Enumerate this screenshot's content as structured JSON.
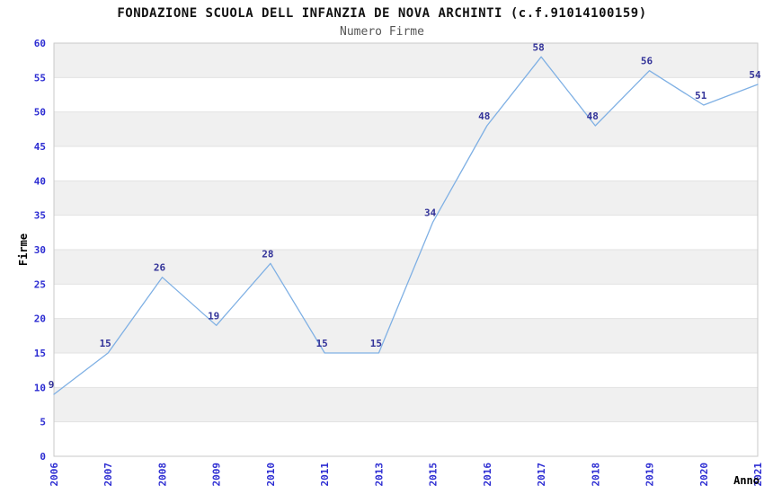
{
  "chart_data": {
    "type": "line",
    "title": "FONDAZIONE SCUOLA DELL INFANZIA DE NOVA ARCHINTI (c.f.91014100159)",
    "subtitle": "Numero Firme",
    "xlabel": "Anno",
    "ylabel": "Firme",
    "categories": [
      "2006",
      "2007",
      "2008",
      "2009",
      "2010",
      "2011",
      "2013",
      "2015",
      "2016",
      "2017",
      "2018",
      "2019",
      "2020",
      "2021"
    ],
    "values": [
      9,
      15,
      26,
      19,
      28,
      15,
      15,
      34,
      48,
      58,
      48,
      56,
      51,
      54
    ],
    "ylim": [
      0,
      60
    ],
    "ytick_step": 5,
    "yticks": [
      0,
      5,
      10,
      15,
      20,
      25,
      30,
      35,
      40,
      45,
      50,
      55,
      60
    ],
    "legend": "none",
    "grid": "horizontal-bands-alternating",
    "x_tick_rotation": 90,
    "colors": {
      "line": "#7fb0e4",
      "tick_label": "#2c2cd2",
      "data_label": "#333399",
      "band_gray": "#f0f0f0",
      "band_white": "#ffffff",
      "gridline": "#e2e2e2",
      "plot_border": "#c9c9c9",
      "title": "#111111",
      "subtitle": "#555555",
      "axis_title": "#000000"
    }
  }
}
